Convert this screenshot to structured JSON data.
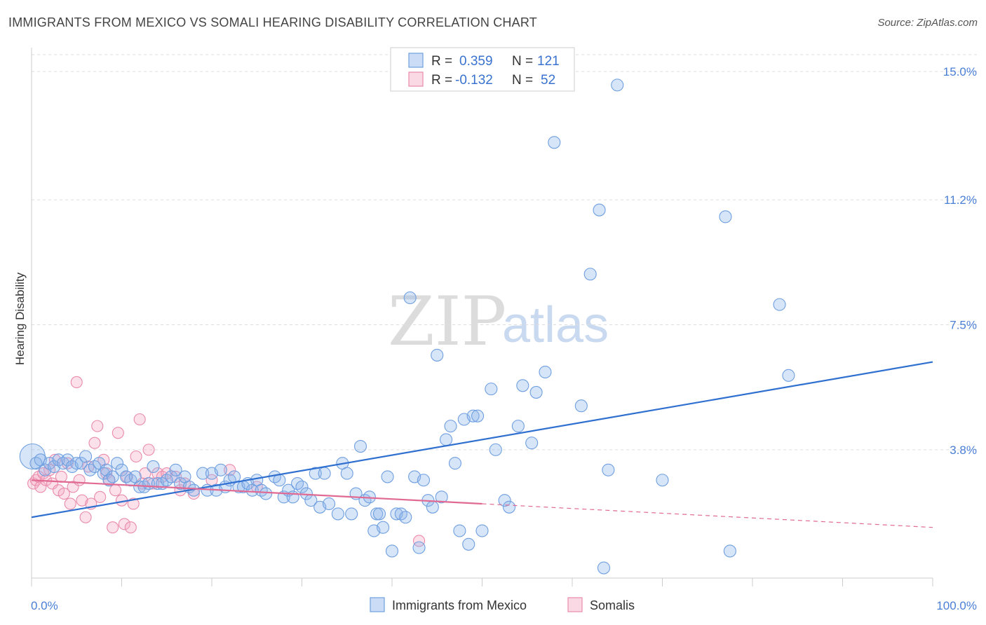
{
  "title": "IMMIGRANTS FROM MEXICO VS SOMALI HEARING DISABILITY CORRELATION CHART",
  "source": "Source: ZipAtlas.com",
  "watermark": {
    "zip": "ZIP",
    "atlas": "atlas"
  },
  "legend": {
    "r_label": "R =",
    "n_label": "N =",
    "rows": [
      {
        "r": "0.359",
        "n": "121"
      },
      {
        "r": "-0.132",
        "n": "52"
      }
    ]
  },
  "colors": {
    "blue": "#6f9fe0",
    "blue_fill": "rgba(140,180,235,0.35)",
    "blue_line": "#2f6fd0",
    "pink": "#e98aab",
    "pink_fill": "rgba(245,170,195,0.35)",
    "pink_line": "#e06a93",
    "grid": "#dddddd",
    "tick_text": "#4a7fd6"
  },
  "chart_data": {
    "type": "scatter",
    "title": "IMMIGRANTS FROM MEXICO VS SOMALI HEARING DISABILITY CORRELATION CHART",
    "xlabel": "",
    "ylabel": "Hearing Disability",
    "xlim": [
      0,
      100
    ],
    "ylim": [
      0,
      15.5
    ],
    "x_tick_labels": [
      "0.0%",
      "100.0%"
    ],
    "y_ticks": [
      3.8,
      7.5,
      11.2,
      15.0
    ],
    "y_tick_labels": [
      "3.8%",
      "7.5%",
      "11.2%",
      "15.0%"
    ],
    "grid": true,
    "legend_position": "top-center",
    "series": [
      {
        "name": "Immigrants from Mexico",
        "regression": {
          "x": [
            0,
            100
          ],
          "y": [
            1.8,
            6.4
          ],
          "solid_until": 100
        },
        "points": [
          [
            0.1,
            3.6
          ],
          [
            0.5,
            3.4
          ],
          [
            1,
            3.5
          ],
          [
            1.5,
            3.2
          ],
          [
            2,
            3.4
          ],
          [
            2.5,
            3.3
          ],
          [
            3,
            3.5
          ],
          [
            3.5,
            3.4
          ],
          [
            4,
            3.5
          ],
          [
            4.5,
            3.3
          ],
          [
            5,
            3.4
          ],
          [
            5.5,
            3.4
          ],
          [
            6,
            3.6
          ],
          [
            6.5,
            3.2
          ],
          [
            7,
            3.3
          ],
          [
            7.5,
            3.4
          ],
          [
            8,
            3.1
          ],
          [
            8.3,
            3.2
          ],
          [
            8.6,
            2.9
          ],
          [
            9,
            3.0
          ],
          [
            9.5,
            3.4
          ],
          [
            10,
            3.2
          ],
          [
            10.5,
            3.0
          ],
          [
            11,
            2.9
          ],
          [
            11.5,
            3.0
          ],
          [
            12,
            2.7
          ],
          [
            12.5,
            2.7
          ],
          [
            13,
            2.8
          ],
          [
            13.5,
            3.3
          ],
          [
            14,
            2.8
          ],
          [
            14.5,
            2.8
          ],
          [
            15,
            2.9
          ],
          [
            15.5,
            3.0
          ],
          [
            16,
            3.2
          ],
          [
            16.5,
            2.8
          ],
          [
            17,
            3.0
          ],
          [
            17.5,
            2.7
          ],
          [
            18,
            2.6
          ],
          [
            19,
            3.1
          ],
          [
            19.5,
            2.6
          ],
          [
            20,
            3.1
          ],
          [
            20.5,
            2.6
          ],
          [
            21,
            3.2
          ],
          [
            21.5,
            2.7
          ],
          [
            22,
            2.9
          ],
          [
            22.5,
            3.0
          ],
          [
            23,
            2.7
          ],
          [
            23.5,
            2.7
          ],
          [
            24,
            2.8
          ],
          [
            24.5,
            2.6
          ],
          [
            25,
            2.9
          ],
          [
            25.5,
            2.6
          ],
          [
            26,
            2.5
          ],
          [
            27,
            3.0
          ],
          [
            27.5,
            2.9
          ],
          [
            28,
            2.4
          ],
          [
            28.5,
            2.6
          ],
          [
            29,
            2.4
          ],
          [
            29.5,
            2.8
          ],
          [
            30,
            2.7
          ],
          [
            30.5,
            2.5
          ],
          [
            31,
            2.3
          ],
          [
            31.5,
            3.1
          ],
          [
            32,
            2.1
          ],
          [
            32.5,
            3.1
          ],
          [
            33,
            2.2
          ],
          [
            34,
            1.9
          ],
          [
            34.5,
            3.4
          ],
          [
            35,
            3.1
          ],
          [
            35.5,
            1.9
          ],
          [
            36,
            2.5
          ],
          [
            36.5,
            3.9
          ],
          [
            37,
            2.3
          ],
          [
            37.5,
            2.4
          ],
          [
            38,
            1.4
          ],
          [
            38.3,
            1.9
          ],
          [
            38.6,
            1.9
          ],
          [
            39,
            1.5
          ],
          [
            39.5,
            3.0
          ],
          [
            40,
            0.8
          ],
          [
            40.5,
            1.9
          ],
          [
            41,
            1.9
          ],
          [
            41.5,
            1.8
          ],
          [
            42,
            8.3
          ],
          [
            42.5,
            3.0
          ],
          [
            43,
            0.9
          ],
          [
            43.5,
            2.9
          ],
          [
            44,
            2.3
          ],
          [
            44.5,
            2.1
          ],
          [
            45,
            6.6
          ],
          [
            45.5,
            2.4
          ],
          [
            46,
            4.1
          ],
          [
            46.5,
            4.5
          ],
          [
            47,
            3.4
          ],
          [
            47.5,
            1.4
          ],
          [
            48,
            4.7
          ],
          [
            48.5,
            1.0
          ],
          [
            49,
            4.8
          ],
          [
            49.5,
            4.8
          ],
          [
            50,
            1.4
          ],
          [
            51,
            5.6
          ],
          [
            51.5,
            3.8
          ],
          [
            52.5,
            2.3
          ],
          [
            53,
            2.1
          ],
          [
            54,
            4.5
          ],
          [
            54.5,
            5.7
          ],
          [
            55.5,
            4.0
          ],
          [
            56,
            5.5
          ],
          [
            57,
            6.1
          ],
          [
            58,
            12.9
          ],
          [
            61,
            5.1
          ],
          [
            62,
            9.0
          ],
          [
            63,
            10.9
          ],
          [
            63.5,
            0.3
          ],
          [
            64,
            3.2
          ],
          [
            65,
            14.6
          ],
          [
            70,
            2.9
          ],
          [
            77,
            10.7
          ],
          [
            77.5,
            0.8
          ],
          [
            83,
            8.1
          ],
          [
            84,
            6.0
          ]
        ]
      },
      {
        "name": "Somalis",
        "regression": {
          "x": [
            0,
            100
          ],
          "y": [
            2.9,
            1.5
          ],
          "solid_until": 50
        },
        "points": [
          [
            0.2,
            2.8
          ],
          [
            0.5,
            2.9
          ],
          [
            0.8,
            3.0
          ],
          [
            1,
            2.7
          ],
          [
            1.3,
            3.1
          ],
          [
            1.6,
            2.9
          ],
          [
            2,
            3.2
          ],
          [
            2.3,
            2.8
          ],
          [
            2.6,
            3.5
          ],
          [
            3,
            2.6
          ],
          [
            3.3,
            3.0
          ],
          [
            3.6,
            2.5
          ],
          [
            4,
            3.4
          ],
          [
            4.3,
            2.2
          ],
          [
            4.6,
            2.7
          ],
          [
            5,
            5.8
          ],
          [
            5.3,
            2.9
          ],
          [
            5.6,
            2.3
          ],
          [
            6,
            1.8
          ],
          [
            6.3,
            3.3
          ],
          [
            6.6,
            2.2
          ],
          [
            7,
            4.0
          ],
          [
            7.3,
            4.5
          ],
          [
            7.6,
            2.4
          ],
          [
            8,
            3.5
          ],
          [
            8.3,
            3.1
          ],
          [
            8.6,
            2.9
          ],
          [
            9,
            1.5
          ],
          [
            9.3,
            2.6
          ],
          [
            9.6,
            4.3
          ],
          [
            10,
            2.3
          ],
          [
            10.3,
            1.6
          ],
          [
            10.6,
            3.0
          ],
          [
            11,
            1.5
          ],
          [
            11.3,
            2.2
          ],
          [
            11.6,
            3.6
          ],
          [
            12,
            4.7
          ],
          [
            12.3,
            2.8
          ],
          [
            12.6,
            3.1
          ],
          [
            13,
            3.8
          ],
          [
            13.5,
            2.8
          ],
          [
            14,
            3.1
          ],
          [
            14.5,
            3.0
          ],
          [
            15,
            3.1
          ],
          [
            16,
            3.0
          ],
          [
            16.5,
            2.6
          ],
          [
            17,
            2.8
          ],
          [
            18,
            2.5
          ],
          [
            20,
            2.9
          ],
          [
            22,
            3.2
          ],
          [
            25,
            2.7
          ],
          [
            43,
            1.1
          ]
        ]
      }
    ]
  },
  "bottom_legend": [
    {
      "label": "Immigrants from Mexico"
    },
    {
      "label": "Somalis"
    }
  ]
}
